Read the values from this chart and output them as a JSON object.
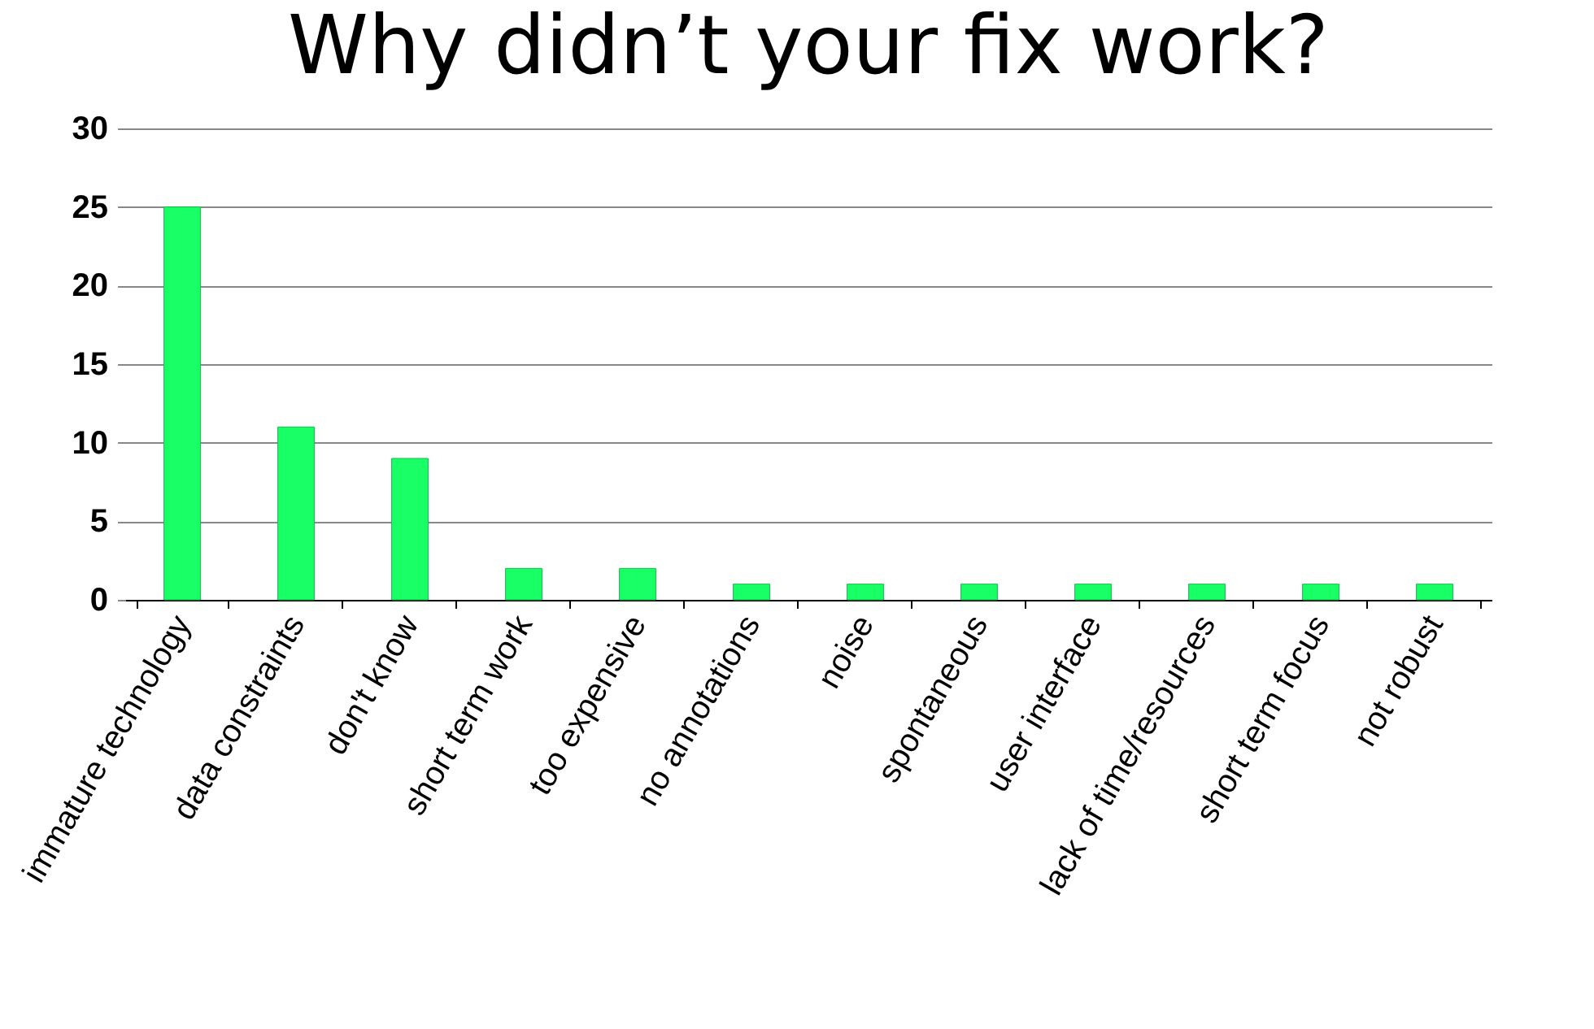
{
  "chart_data": {
    "type": "bar",
    "title": "Why didn’t your fix work?",
    "categories": [
      "immature technology",
      "data constraints",
      "don't know",
      "short term work",
      "too expensive",
      "no annotations",
      "noise",
      "spontaneous",
      "user interface",
      "lack of time/resources",
      "short term focus",
      "not robust"
    ],
    "values": [
      25,
      11,
      9,
      2,
      2,
      1,
      1,
      1,
      1,
      1,
      1,
      1
    ],
    "color": "#19ff66",
    "ylim": [
      0,
      30
    ],
    "yticks": [
      0,
      5,
      10,
      15,
      20,
      25,
      30
    ],
    "grid": "y"
  }
}
